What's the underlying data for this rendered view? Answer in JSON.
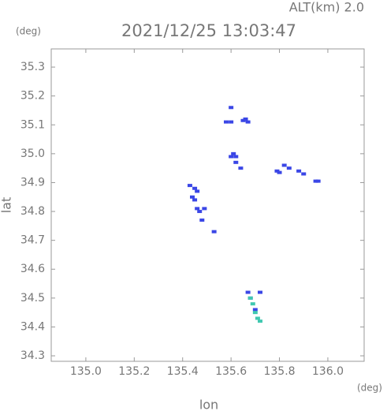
{
  "chart_data": {
    "type": "scatter",
    "title": "2021/12/25 13:03:47",
    "subtitle": "ALT(km) 2.0",
    "x_unit": "(deg)",
    "y_unit": "(deg)",
    "x_label": "lon",
    "y_label": "lat",
    "xlim": [
      134.857,
      136.15
    ],
    "ylim": [
      34.281,
      35.363
    ],
    "xticks": [
      {
        "value": 135,
        "label": "135.0"
      },
      135.2,
      135.4,
      135.6,
      135.8,
      {
        "value": 136,
        "label": "136.0"
      }
    ],
    "yticks": [
      34.3,
      34.4,
      34.5,
      34.6,
      34.7,
      34.8,
      34.9,
      {
        "value": 35,
        "label": "35.0"
      },
      35.1,
      35.2,
      35.3
    ],
    "series": [
      {
        "color": "#3a46e6",
        "x": [
          135.58,
          135.6,
          135.6,
          135.65,
          135.67,
          135.66,
          135.61,
          135.6,
          135.62,
          135.62,
          135.64,
          135.79,
          135.82,
          135.84,
          135.88,
          135.9,
          135.95,
          135.96,
          135.8,
          135.43,
          135.45,
          135.46,
          135.44,
          135.46,
          135.47,
          135.49,
          135.48,
          135.53,
          135.45,
          135.67,
          135.72,
          135.68,
          135.7
        ],
        "y": [
          35.11,
          35.11,
          35.16,
          35.115,
          35.11,
          35.12,
          35.0,
          34.99,
          34.99,
          34.97,
          34.95,
          34.94,
          34.96,
          34.95,
          34.94,
          34.93,
          34.905,
          34.905,
          34.935,
          34.89,
          34.88,
          34.87,
          34.85,
          34.81,
          34.8,
          34.81,
          34.77,
          34.73,
          34.84,
          34.52,
          34.52,
          34.5,
          34.46
        ]
      },
      {
        "color": "#40c8b0",
        "x": [
          135.68,
          135.69,
          135.7,
          135.71,
          135.72
        ],
        "y": [
          34.5,
          34.48,
          34.45,
          34.43,
          34.42
        ]
      }
    ]
  }
}
